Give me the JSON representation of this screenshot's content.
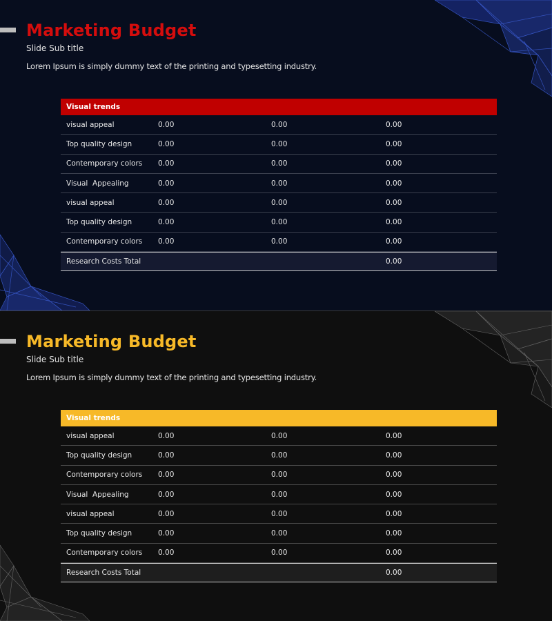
{
  "slides": [
    {
      "title": "Marketing Budget",
      "subtitle": "Slide Sub title",
      "lead": "Lorem Ipsum is simply dummy text of the printing and typesetting industry.",
      "table_header": "Visual trends",
      "rows": [
        {
          "label": "visual appeal",
          "v1": "0.00",
          "v2": "0.00",
          "v3": "0.00"
        },
        {
          "label": "Top quality design",
          "v1": "0.00",
          "v2": "0.00",
          "v3": "0.00"
        },
        {
          "label": "Contemporary colors",
          "v1": "0.00",
          "v2": "0.00",
          "v3": "0.00"
        },
        {
          "label": "Visual  Appealing",
          "v1": "0.00",
          "v2": "0.00",
          "v3": "0.00"
        },
        {
          "label": "visual appeal",
          "v1": "0.00",
          "v2": "0.00",
          "v3": "0.00"
        },
        {
          "label": "Top quality design",
          "v1": "0.00",
          "v2": "0.00",
          "v3": "0.00"
        },
        {
          "label": "Contemporary colors",
          "v1": "0.00",
          "v2": "0.00",
          "v3": "0.00"
        }
      ],
      "total": {
        "label": "Research Costs Total",
        "value": "0.00"
      },
      "colors": {
        "accent": "#c00000",
        "background": "#070d1e"
      }
    },
    {
      "title": "Marketing Budget",
      "subtitle": "Slide Sub title",
      "lead": "Lorem Ipsum is simply dummy text of the printing and typesetting industry.",
      "table_header": "Visual trends",
      "rows": [
        {
          "label": "visual appeal",
          "v1": "0.00",
          "v2": "0.00",
          "v3": "0.00"
        },
        {
          "label": "Top quality design",
          "v1": "0.00",
          "v2": "0.00",
          "v3": "0.00"
        },
        {
          "label": "Contemporary colors",
          "v1": "0.00",
          "v2": "0.00",
          "v3": "0.00"
        },
        {
          "label": "Visual  Appealing",
          "v1": "0.00",
          "v2": "0.00",
          "v3": "0.00"
        },
        {
          "label": "visual appeal",
          "v1": "0.00",
          "v2": "0.00",
          "v3": "0.00"
        },
        {
          "label": "Top quality design",
          "v1": "0.00",
          "v2": "0.00",
          "v3": "0.00"
        },
        {
          "label": "Contemporary colors",
          "v1": "0.00",
          "v2": "0.00",
          "v3": "0.00"
        }
      ],
      "total": {
        "label": "Research Costs Total",
        "value": "0.00"
      },
      "colors": {
        "accent": "#f7b928",
        "background": "#0f0f0f"
      }
    }
  ]
}
